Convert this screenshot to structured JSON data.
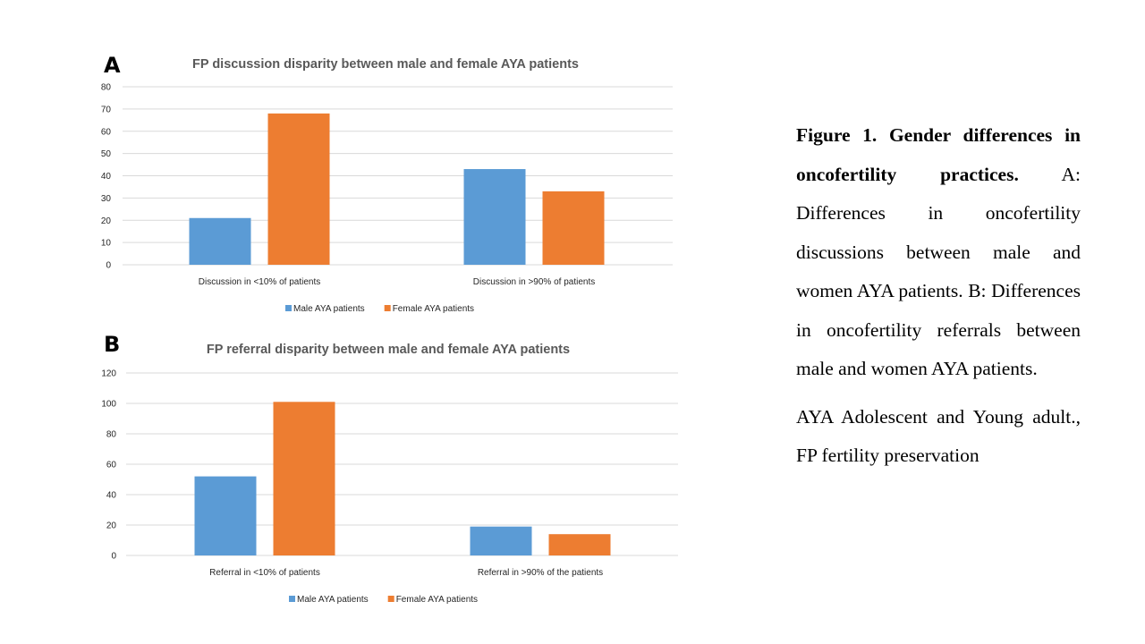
{
  "colors": {
    "male": "#5b9bd5",
    "female": "#ed7d31"
  },
  "chart_data": [
    {
      "panel": "A",
      "type": "bar",
      "title": "FP discussion disparity between male and female AYA patients",
      "categories": [
        "Discussion in <10% of patients",
        "Discussion in >90% of patients"
      ],
      "series": [
        {
          "name": "Male AYA patients",
          "values": [
            21,
            43
          ]
        },
        {
          "name": "Female AYA patients",
          "values": [
            68,
            33
          ]
        }
      ],
      "ylim": [
        0,
        80
      ],
      "yticks": [
        0,
        10,
        20,
        30,
        40,
        50,
        60,
        70,
        80
      ],
      "grid": true,
      "legend": "bottom"
    },
    {
      "panel": "B",
      "type": "bar",
      "title": "FP referral disparity between male and female AYA patients",
      "categories": [
        "Referral in <10% of patients",
        "Referral in >90% of the patients"
      ],
      "series": [
        {
          "name": "Male AYA patients",
          "values": [
            52,
            19
          ]
        },
        {
          "name": "Female AYA patients",
          "values": [
            101,
            14
          ]
        }
      ],
      "ylim": [
        0,
        120
      ],
      "yticks": [
        0,
        20,
        40,
        60,
        80,
        100,
        120
      ],
      "grid": true,
      "legend": "bottom"
    }
  ],
  "caption": {
    "bold": "Figure 1. Gender differences in oncofertility practices.",
    "text": " A: Differences in oncofertility discussions between male and women AYA patients. B: Differences in oncofertility referrals between male and women AYA patients.",
    "note": "AYA Adolescent and Young adult., FP fertility preservation"
  }
}
